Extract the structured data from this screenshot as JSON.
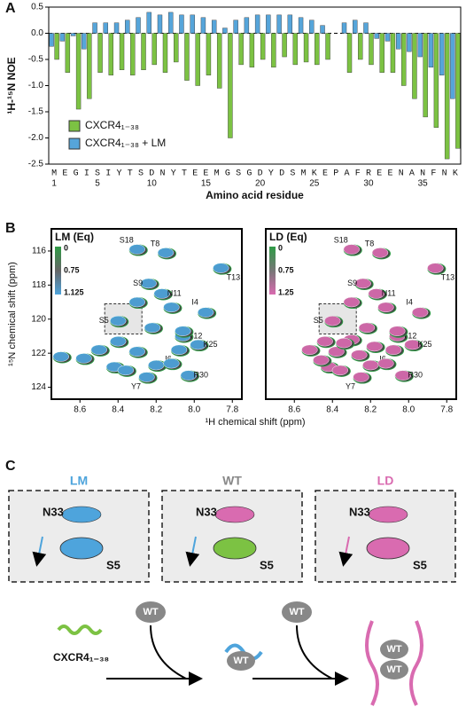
{
  "figure": {
    "panel_labels": [
      "A",
      "B",
      "C"
    ]
  },
  "chart_data": [
    {
      "type": "bar",
      "ylabel": "¹H-¹⁵N NOE",
      "xlabel": "Amino acid residue",
      "categories": [
        "M",
        "E",
        "G",
        "I",
        "S",
        "I",
        "Y",
        "T",
        "S",
        "D",
        "N",
        "Y",
        "T",
        "E",
        "E",
        "M",
        "G",
        "S",
        "G",
        "D",
        "Y",
        "D",
        "S",
        "M",
        "K",
        "E",
        "P",
        "A",
        "F",
        "R",
        "E",
        "E",
        "N",
        "A",
        "N",
        "F",
        "N",
        "K"
      ],
      "xticks": [
        1,
        5,
        10,
        15,
        20,
        25,
        30,
        35
      ],
      "ylim": [
        -2.5,
        0.5
      ],
      "yticks": [
        -2.5,
        {
          "value": -2,
          "label": "-2.0"
        },
        -1.5,
        {
          "value": -1,
          "label": "-1.0"
        },
        -0.5,
        {
          "value": 0,
          "label": "0.0"
        },
        0.5
      ],
      "series": [
        {
          "name": "CXCR4₁₋₃₈",
          "color": "#7cc243",
          "values": [
            -0.5,
            -0.75,
            -1.45,
            -1.25,
            -0.75,
            -0.8,
            -0.7,
            -0.8,
            -0.7,
            -0.6,
            -0.75,
            -0.55,
            -0.9,
            -1.0,
            -0.8,
            -1.05,
            -2.0,
            -0.6,
            -0.65,
            -0.5,
            -0.65,
            -0.45,
            -0.6,
            -0.55,
            -0.6,
            -0.5,
            null,
            -0.75,
            -0.5,
            -0.6,
            -0.75,
            -0.75,
            -1.0,
            -1.25,
            -1.6,
            -1.8,
            -2.4,
            -2.2
          ]
        },
        {
          "name": "CXCR4₁₋₃₈ + LM",
          "color": "#56a5da",
          "values": [
            -0.25,
            -0.15,
            -0.05,
            -0.3,
            0.2,
            0.2,
            0.2,
            0.25,
            0.3,
            0.4,
            0.35,
            0.4,
            0.35,
            0.35,
            0.3,
            0.25,
            0.1,
            0.25,
            0.3,
            0.35,
            0.35,
            0.35,
            0.35,
            0.3,
            0.25,
            0.15,
            null,
            0.2,
            0.25,
            0.2,
            -0.1,
            -0.15,
            -0.3,
            -0.35,
            -0.45,
            -0.65,
            -0.8,
            -1.25
          ]
        }
      ]
    },
    {
      "type": "nmr",
      "title": "LM (Eq)",
      "ylabel": "¹⁵N chemical shift (ppm)",
      "xlabel": "¹H chemical shift (ppm)",
      "colorbar": [
        "0",
        "0.75",
        "1.125"
      ],
      "color": "#4ea4dc",
      "xlim": [
        8.75,
        7.75
      ],
      "ylim": [
        114.7,
        124.7
      ],
      "xticks": [
        8.6,
        8.4,
        8.2,
        {
          "value": 8,
          "label": "8.0"
        },
        7.8
      ],
      "yticks": [
        116,
        118,
        120,
        122,
        124
      ],
      "peaks": {
        "labels": [
          "S18",
          "T8",
          "T13",
          "S9",
          "N11",
          "I4",
          "S5",
          "Y12",
          "K25",
          "I6",
          "Y7",
          "R30",
          null,
          null,
          null,
          null,
          null,
          null,
          null,
          null,
          null,
          null,
          null,
          null,
          null
        ],
        "x": [
          8.3,
          8.15,
          7.86,
          8.24,
          8.17,
          7.94,
          8.4,
          8.06,
          7.98,
          8.08,
          8.25,
          8.03,
          8.7,
          8.58,
          8.5,
          8.4,
          8.3,
          8.42,
          8.36,
          8.2,
          8.12,
          8.22,
          8.06,
          8.3,
          8.12
        ],
        "y": [
          115.9,
          116.1,
          117.0,
          117.9,
          118.5,
          119.6,
          120.1,
          121.0,
          121.5,
          121.8,
          123.4,
          123.3,
          122.2,
          122.3,
          121.8,
          121.3,
          121.9,
          122.8,
          123.0,
          122.7,
          122.6,
          120.5,
          120.7,
          119.0,
          119.3
        ]
      }
    },
    {
      "type": "nmr",
      "title": "LD (Eq)",
      "colorbar": [
        "0",
        "0.75",
        "1.25"
      ],
      "color": "#d96bb0",
      "xlim": [
        8.75,
        7.75
      ],
      "ylim": [
        114.7,
        124.7
      ],
      "xticks": [
        8.6,
        8.4,
        8.2,
        {
          "value": 8,
          "label": "8.0"
        },
        7.8
      ],
      "peaks": {
        "labels": [
          "S18",
          "T8",
          "T13",
          "S9",
          "N11",
          "I4",
          "S5",
          "Y12",
          "K25",
          "I6",
          "Y7",
          "R30",
          null,
          null,
          null,
          null,
          null,
          null,
          null,
          null,
          null,
          null,
          null,
          null,
          null,
          null,
          null,
          null
        ],
        "x": [
          8.3,
          8.15,
          7.86,
          8.24,
          8.17,
          7.94,
          8.4,
          8.06,
          7.98,
          8.08,
          8.25,
          8.03,
          8.52,
          8.44,
          8.38,
          8.3,
          8.42,
          8.36,
          8.2,
          8.12,
          8.22,
          8.06,
          8.3,
          8.12,
          8.34,
          8.18,
          8.46,
          8.26
        ],
        "y": [
          115.9,
          116.1,
          117.0,
          117.9,
          118.5,
          119.6,
          120.1,
          121.0,
          121.5,
          121.8,
          123.4,
          123.3,
          121.8,
          121.3,
          121.9,
          121.2,
          122.8,
          123.0,
          122.7,
          122.6,
          120.5,
          120.7,
          119.0,
          119.3,
          121.4,
          121.6,
          122.4,
          122.1
        ]
      }
    }
  ],
  "diagram": {
    "boxes": [
      {
        "title": "LM",
        "n33": "N33",
        "s5": "S5"
      },
      {
        "title": "WT",
        "n33": "N33",
        "s5": "S5"
      },
      {
        "title": "LD",
        "n33": "N33",
        "s5": "S5"
      }
    ],
    "peptide": "CXCR4₁₋₃₈",
    "wt": [
      "WT",
      "WT",
      "WT",
      "WT",
      "WT"
    ]
  }
}
